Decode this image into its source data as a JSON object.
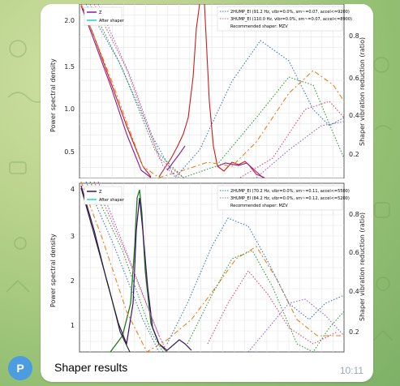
{
  "avatar": {
    "initial": "P",
    "color": "#4b9ce1"
  },
  "message": {
    "caption": "Shaper results",
    "time": "10:11"
  },
  "charts": {
    "top": {
      "ylabel": "Power spectral density",
      "y2label": "Shaper vibration reduction (ratio)",
      "ticks_left": [
        "2.0",
        "1.5",
        "1.0",
        "0.5"
      ],
      "ticks_right": [
        "0.8",
        "0.6",
        "0.4",
        "0.2"
      ],
      "legend_left": [
        "Z",
        "After shaper"
      ],
      "legend_right": [
        "2HUMP_EI (91.2 Hz, vibr=0.0%, sm~=0.07, accel<=9200)",
        "3HUMP_EI (110.0 Hz, vibr=0.0%, sm~=0.07, accel<=8900)",
        "Recommended shaper: MZV"
      ]
    },
    "bottom": {
      "ylabel": "Power spectral density",
      "y2label": "Shaper vibration reduction (ratio)",
      "ticks_left": [
        "4",
        "3",
        "2",
        "1"
      ],
      "ticks_right": [
        "0.8",
        "0.6",
        "0.4",
        "0.2"
      ],
      "legend_left": [
        "Z",
        "After shaper"
      ],
      "legend_right": [
        "2HUMP_EI (70.2 Hz, vibr=0.0%, sm~=0.11, accel<=5500)",
        "3HUMP_EI (84.2 Hz, vibr=0.0%, sm~=0.12, accel<=5200)",
        "Recommended shaper: MZV"
      ]
    }
  }
}
